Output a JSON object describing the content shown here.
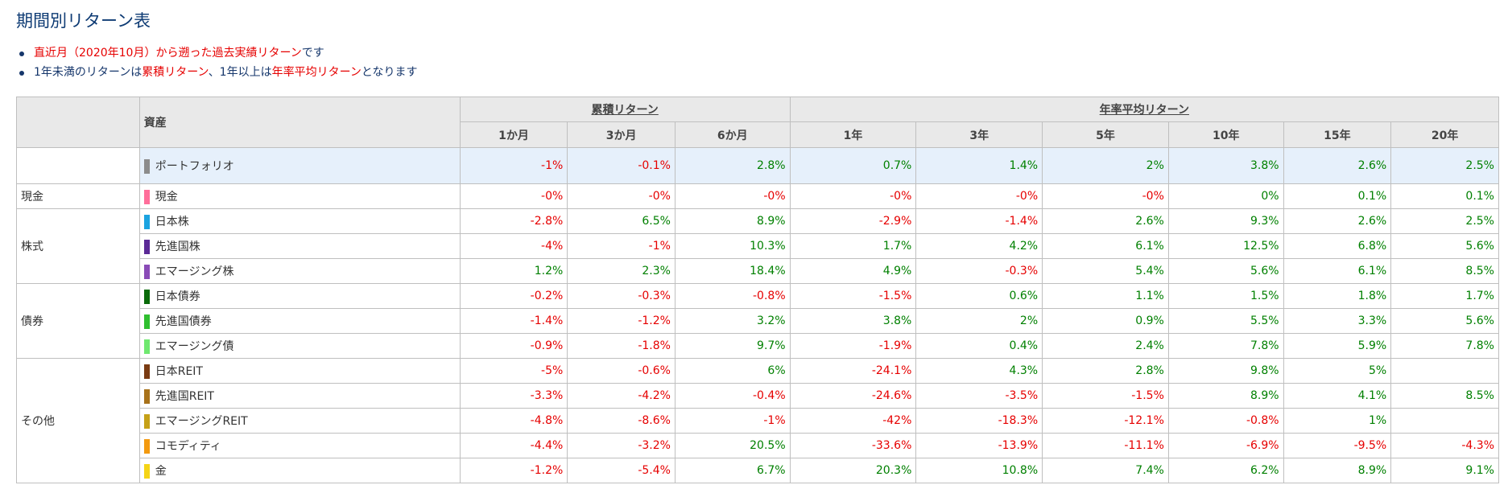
{
  "title": "期間別リターン表",
  "notes": {
    "line1": {
      "red": "直近月（2020年10月）から遡った過去実績リターン",
      "rest": "です"
    },
    "line2": {
      "part1": "1年未満のリターンは",
      "red1": "累積リターン",
      "part2": "、1年以上は",
      "red2": "年率平均リターン",
      "part3": "となります"
    }
  },
  "table": {
    "asset_header": "資産",
    "group_cumulative": "累積リターン",
    "group_annual": "年率平均リターン",
    "periods": [
      "1か月",
      "3か月",
      "6か月",
      "1年",
      "3年",
      "5年",
      "10年",
      "15年",
      "20年"
    ],
    "portfolio": {
      "name": "ポートフォリオ",
      "color": "#8c8c8c",
      "values": [
        "-1%",
        "-0.1%",
        "2.8%",
        "0.7%",
        "1.4%",
        "2%",
        "3.8%",
        "2.6%",
        "2.5%"
      ]
    },
    "categories": [
      {
        "name": "現金",
        "assets": [
          {
            "name": "現金",
            "color": "#ff6e9a",
            "values": [
              "-0%",
              "-0%",
              "-0%",
              "-0%",
              "-0%",
              "-0%",
              "0%",
              "0.1%",
              "0.1%"
            ]
          }
        ]
      },
      {
        "name": "株式",
        "assets": [
          {
            "name": "日本株",
            "color": "#1ba3e0",
            "values": [
              "-2.8%",
              "6.5%",
              "8.9%",
              "-2.9%",
              "-1.4%",
              "2.6%",
              "9.3%",
              "2.6%",
              "2.5%"
            ]
          },
          {
            "name": "先進国株",
            "color": "#5b2a96",
            "values": [
              "-4%",
              "-1%",
              "10.3%",
              "1.7%",
              "4.2%",
              "6.1%",
              "12.5%",
              "6.8%",
              "5.6%"
            ]
          },
          {
            "name": "エマージング株",
            "color": "#8a4bb7",
            "values": [
              "1.2%",
              "2.3%",
              "18.4%",
              "4.9%",
              "-0.3%",
              "5.4%",
              "5.6%",
              "6.1%",
              "8.5%"
            ]
          }
        ]
      },
      {
        "name": "債券",
        "assets": [
          {
            "name": "日本債券",
            "color": "#0a6b0a",
            "values": [
              "-0.2%",
              "-0.3%",
              "-0.8%",
              "-1.5%",
              "0.6%",
              "1.1%",
              "1.5%",
              "1.8%",
              "1.7%"
            ]
          },
          {
            "name": "先進国債券",
            "color": "#2fbf2f",
            "values": [
              "-1.4%",
              "-1.2%",
              "3.2%",
              "3.8%",
              "2%",
              "0.9%",
              "5.5%",
              "3.3%",
              "5.6%"
            ]
          },
          {
            "name": "エマージング債",
            "color": "#6fe86f",
            "values": [
              "-0.9%",
              "-1.8%",
              "9.7%",
              "-1.9%",
              "0.4%",
              "2.4%",
              "7.8%",
              "5.9%",
              "7.8%"
            ]
          }
        ]
      },
      {
        "name": "その他",
        "assets": [
          {
            "name": "日本REIT",
            "color": "#7a3b12",
            "values": [
              "-5%",
              "-0.6%",
              "6%",
              "-24.1%",
              "4.3%",
              "2.8%",
              "9.8%",
              "5%",
              ""
            ]
          },
          {
            "name": "先進国REIT",
            "color": "#a8721a",
            "values": [
              "-3.3%",
              "-4.2%",
              "-0.4%",
              "-24.6%",
              "-3.5%",
              "-1.5%",
              "8.9%",
              "4.1%",
              "8.5%"
            ]
          },
          {
            "name": "エマージングREIT",
            "color": "#c6a117",
            "values": [
              "-4.8%",
              "-8.6%",
              "-1%",
              "-42%",
              "-18.3%",
              "-12.1%",
              "-0.8%",
              "1%",
              ""
            ]
          },
          {
            "name": "コモディティ",
            "color": "#f39a10",
            "values": [
              "-4.4%",
              "-3.2%",
              "20.5%",
              "-33.6%",
              "-13.9%",
              "-11.1%",
              "-6.9%",
              "-9.5%",
              "-4.3%"
            ]
          },
          {
            "name": "金",
            "color": "#f5d416",
            "values": [
              "-1.2%",
              "-5.4%",
              "6.7%",
              "20.3%",
              "10.8%",
              "7.4%",
              "6.2%",
              "8.9%",
              "9.1%"
            ]
          }
        ]
      }
    ]
  }
}
